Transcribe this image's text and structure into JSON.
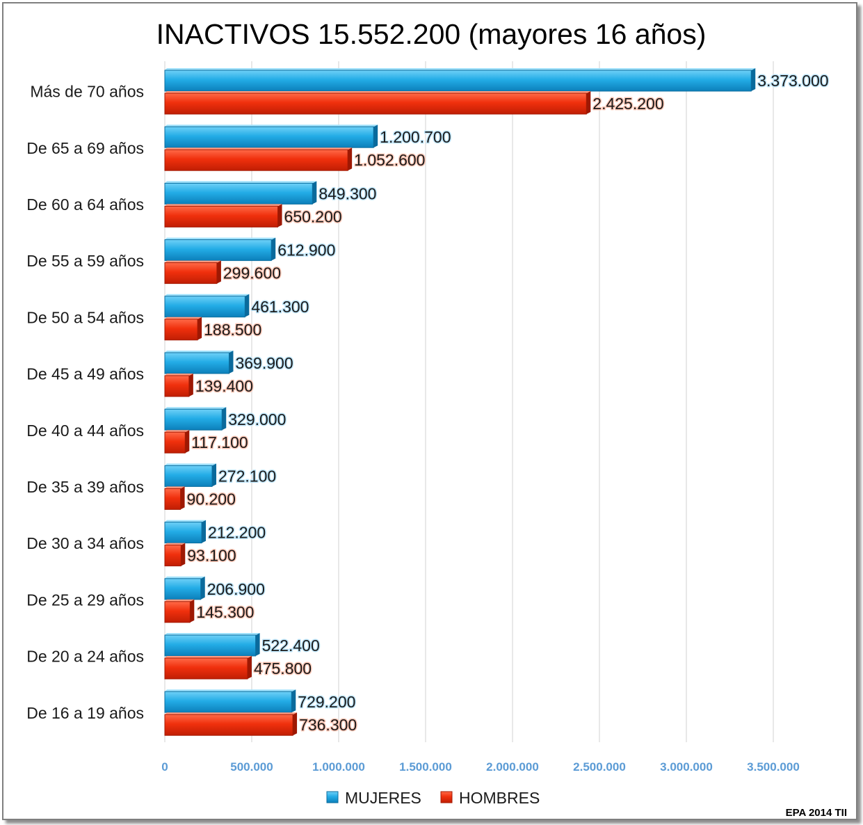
{
  "chart_data": {
    "type": "bar",
    "orientation": "horizontal",
    "title": "INACTIVOS 15.552.200 (mayores 16 años)",
    "categories": [
      "Más de 70 años",
      "De 65 a 69 años",
      "De 60 a 64 años",
      "De 55 a 59 años",
      "De 50 a 54 años",
      "De 45 a 49 años",
      "De 40 a 44 años",
      "De 35 a 39 años",
      "De 30 a 34 años",
      "De 25 a 29 años",
      "De 20 a 24 años",
      "De 16 a 19 años"
    ],
    "series": [
      {
        "name": "MUJERES",
        "color": "#1aa3e0",
        "values": [
          3373000,
          1200700,
          849300,
          612900,
          461300,
          369900,
          329000,
          272100,
          212200,
          206900,
          522400,
          729200
        ],
        "labels": [
          "3.373.000",
          "1.200.700",
          "849.300",
          "612.900",
          "461.300",
          "369.900",
          "329.000",
          "272.100",
          "212.200",
          "206.900",
          "522.400",
          "729.200"
        ]
      },
      {
        "name": "HOMBRES",
        "color": "#f02a0c",
        "values": [
          2425200,
          1052600,
          650200,
          299600,
          188500,
          139400,
          117100,
          90200,
          93100,
          145300,
          475800,
          736300
        ],
        "labels": [
          "2.425.200",
          "1.052.600",
          "650.200",
          "299.600",
          "188.500",
          "139.400",
          "117.100",
          "90.200",
          "93.100",
          "145.300",
          "475.800",
          "736.300"
        ]
      }
    ],
    "xlim": [
      0,
      3500000
    ],
    "xticks": [
      0,
      500000,
      1000000,
      1500000,
      2000000,
      2500000,
      3000000,
      3500000
    ],
    "xtick_labels": [
      "0",
      "500.000",
      "1.000.000",
      "1.500.000",
      "2.000.000",
      "2.500.000",
      "3.000.000",
      "3.500.000"
    ],
    "grid": "vertical",
    "legend": "bottom",
    "source_note": "EPA 2014 TII"
  }
}
